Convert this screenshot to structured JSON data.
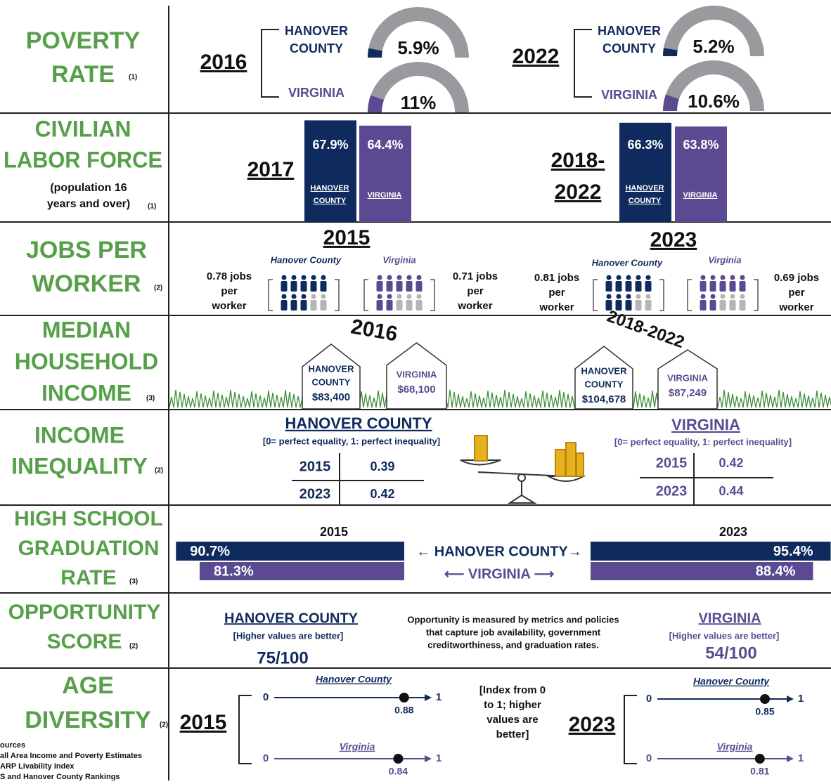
{
  "poverty_rate": {
    "label": [
      "POVERTY",
      "RATE"
    ],
    "note": "(1)",
    "panels": [
      {
        "year": "2016",
        "rows": [
          {
            "name": [
              "HANOVER",
              "COUNTY"
            ],
            "value": 5.9,
            "label": "5.9%"
          },
          {
            "name": [
              "VIRGINIA"
            ],
            "value": 11,
            "label": "11%"
          }
        ]
      },
      {
        "year": "2022",
        "rows": [
          {
            "name": [
              "HANOVER",
              "COUNTY"
            ],
            "value": 5.2,
            "label": "5.2%"
          },
          {
            "name": [
              "VIRGINIA"
            ],
            "value": 10.6,
            "label": "10.6%"
          }
        ]
      }
    ]
  },
  "civilian_labor_force": {
    "label": [
      "CIVILIAN",
      "LABOR FORCE"
    ],
    "subtitle": [
      "(population 16",
      "years and over)"
    ],
    "note": "(1)",
    "panels": [
      {
        "year": [
          "2017"
        ],
        "bars": [
          {
            "name": [
              "HANOVER",
              "COUNTY"
            ],
            "value": 67.9,
            "label": "67.9%"
          },
          {
            "name": [
              "VIRGINIA"
            ],
            "value": 64.4,
            "label": "64.4%"
          }
        ]
      },
      {
        "year": [
          "2018-",
          "2022"
        ],
        "bars": [
          {
            "name": [
              "HANOVER",
              "COUNTY"
            ],
            "value": 66.3,
            "label": "66.3%"
          },
          {
            "name": [
              "VIRGINIA"
            ],
            "value": 63.8,
            "label": "63.8%"
          }
        ]
      }
    ]
  },
  "jobs_per_worker": {
    "label": [
      "JOBS PER",
      "WORKER"
    ],
    "note": "(2)",
    "panels": [
      {
        "year": "2015",
        "county": "Hanover County",
        "state": "Virginia",
        "county_ratio": [
          "0.78 jobs",
          "per",
          "worker"
        ],
        "state_ratio": [
          "0.71 jobs",
          "per",
          "worker"
        ]
      },
      {
        "year": "2023",
        "county": "Hanover County",
        "state": "Virginia",
        "county_ratio": [
          "0.81 jobs",
          "per",
          "worker"
        ],
        "state_ratio": [
          "0.69 jobs",
          "per",
          "worker"
        ]
      }
    ]
  },
  "median_household_income": {
    "label": [
      "MEDIAN",
      "HOUSEHOLD",
      "INCOME"
    ],
    "note": "(3)",
    "panels": [
      {
        "year": "2016",
        "houses": [
          {
            "name": [
              "HANOVER",
              "COUNTY"
            ],
            "value": "$83,400"
          },
          {
            "name": [
              "VIRGINIA"
            ],
            "value": "$68,100"
          }
        ]
      },
      {
        "year": "2018-2022",
        "houses": [
          {
            "name": [
              "HANOVER",
              "COUNTY"
            ],
            "value": "$104,678"
          },
          {
            "name": [
              "VIRGINIA"
            ],
            "value": "$87,249"
          }
        ]
      }
    ]
  },
  "income_inequality": {
    "label": [
      "INCOME",
      "INEQUALITY"
    ],
    "note": "(2)",
    "tables": [
      {
        "title": "HANOVER COUNTY",
        "scale": "[0= perfect equality, 1: perfect inequality]",
        "rows": [
          [
            "2015",
            0.39
          ],
          [
            "2023",
            0.42
          ]
        ]
      },
      {
        "title": "VIRGINIA",
        "scale": "[0= perfect equality, 1: perfect inequality]",
        "rows": [
          [
            "2015",
            0.42
          ],
          [
            "2023",
            0.44
          ]
        ]
      }
    ]
  },
  "graduation_rate": {
    "label": [
      "HIGH SCHOOL",
      "GRADUATION",
      "RATE"
    ],
    "note": "(3)",
    "county_label": "← HANOVER COUNTY→",
    "state_label": "⟵  VIRGINIA  ⟶",
    "panels": [
      {
        "year": "2015",
        "county": {
          "value": 90.7,
          "label": "90.7%"
        },
        "state": {
          "value": 81.3,
          "label": "81.3%"
        }
      },
      {
        "year": "2023",
        "county": {
          "value": 95.4,
          "label": "95.4%"
        },
        "state": {
          "value": 88.4,
          "label": "88.4%"
        }
      }
    ]
  },
  "opportunity_score": {
    "label": [
      "OPPORTUNITY",
      "SCORE"
    ],
    "note": "(2)",
    "description": [
      "Opportunity is measured by metrics and policies",
      "that capture job availability, government",
      "creditworthiness, and graduation rates."
    ],
    "scores": [
      {
        "name": "HANOVER COUNTY",
        "hint": "[Higher values are better]",
        "score": "75/100"
      },
      {
        "name": "VIRGINIA",
        "hint": "[Higher values are better]",
        "score": "54/100"
      }
    ]
  },
  "age_diversity": {
    "label": [
      "AGE",
      "DIVERSITY"
    ],
    "note": "(2)",
    "description": [
      "[Index from 0",
      "to 1; higher",
      "values are",
      "better]"
    ],
    "panels": [
      {
        "year": "2015",
        "rows": [
          {
            "name": "Hanover County",
            "ends": [
              0,
              1
            ],
            "value": 0.88
          },
          {
            "name": "Virginia",
            "ends": [
              0,
              1
            ],
            "value": 0.84
          }
        ]
      },
      {
        "year": "2023",
        "rows": [
          {
            "name": "Hanover County",
            "ends": [
              0,
              1
            ],
            "value": 0.85
          },
          {
            "name": "Virginia",
            "ends": [
              0,
              1
            ],
            "value": 0.81
          }
        ]
      }
    ]
  },
  "sources": [
    "ources",
    "all Area Income and Poverty Estimates",
    "ARP Livability Index",
    "S and Hanover County Rankings"
  ]
}
